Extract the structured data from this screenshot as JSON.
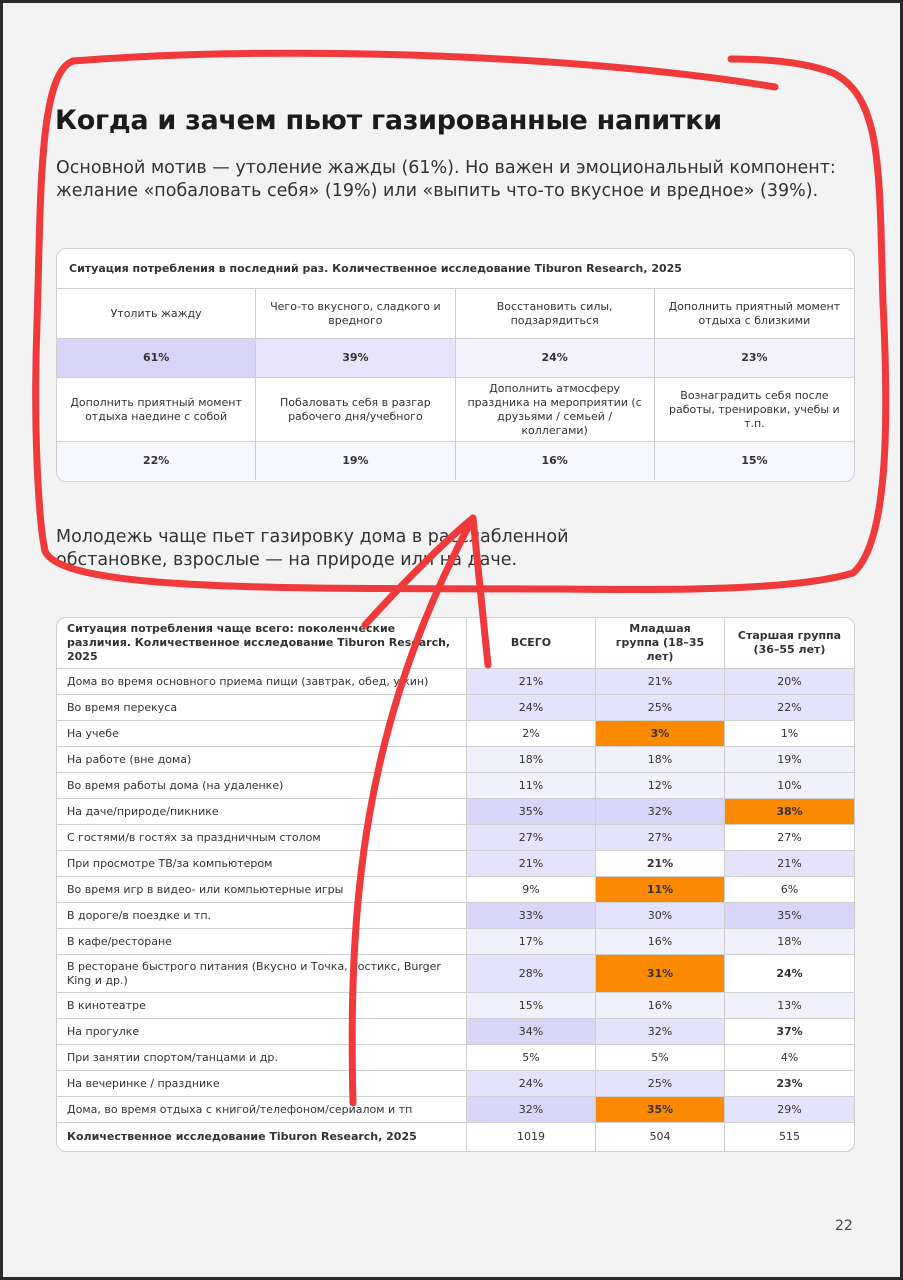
{
  "title": "Когда и зачем пьют газированные напитки",
  "intro": "Основной мотив — утоление жажды (61%). Но важен и эмоциональный компонент: желание «побаловать себя» (19%) или «выпить что-то вкусное и вредное» (39%).",
  "table1": {
    "caption": "Ситуация потребления в последний раз. Количественное исследование Tiburon Research, 2025",
    "rows": [
      [
        "Утолить жажду",
        "Чего-то вкусного, сладкого и вредного",
        "Восстановить силы, подзарядиться",
        "Дополнить приятный момент отдыха с близкими"
      ],
      [
        "61%",
        "39%",
        "24%",
        "23%"
      ],
      [
        "Дополнить приятный момент отдыха наедине с собой",
        "Побаловать себя в разгар рабочего дня/учебного",
        "Дополнить атмосферу праздника на мероприятии (с друзьями / семьей / коллегами)",
        "Вознаградить себя после работы, тренировки, учебы и т.п."
      ],
      [
        "22%",
        "19%",
        "16%",
        "15%"
      ]
    ]
  },
  "subtitle": "Молодежь чаще пьет газировку дома в расслабленной обстановке, взрослые — на природе или на даче.",
  "table2": {
    "header": [
      "Ситуация потребления чаще всего: поколенческие различия. Количественное исследование Tiburon Research, 2025",
      "ВСЕГО",
      "Младшая группа (18–35 лет)",
      "Старшая группа (36–55 лет)"
    ],
    "rows": [
      [
        "Дома во время основного приема пищи (завтрак, обед, ужин)",
        "21%",
        "21%",
        "20%"
      ],
      [
        "Во время перекуса",
        "24%",
        "25%",
        "22%"
      ],
      [
        "На учебе",
        "2%",
        "3%",
        "1%"
      ],
      [
        "На работе (вне дома)",
        "18%",
        "18%",
        "19%"
      ],
      [
        "Во время работы дома (на удаленке)",
        "11%",
        "12%",
        "10%"
      ],
      [
        "На даче/природе/пикнике",
        "35%",
        "32%",
        "38%"
      ],
      [
        "С гостями/в гостях за праздничным столом",
        "27%",
        "27%",
        "27%"
      ],
      [
        "При просмотре ТВ/за компьютером",
        "21%",
        "21%",
        "21%"
      ],
      [
        "Во время игр в видео- или компьютерные игры",
        "9%",
        "11%",
        "6%"
      ],
      [
        "В дороге/в поездке и тп.",
        "33%",
        "30%",
        "35%"
      ],
      [
        "В кафе/ресторане",
        "17%",
        "16%",
        "18%"
      ],
      [
        "В ресторане быстрого питания (Вкусно и Точка, Ростикс, Burger King и др.)",
        "28%",
        "31%",
        "24%"
      ],
      [
        "В кинотеатре",
        "15%",
        "16%",
        "13%"
      ],
      [
        "На прогулке",
        "34%",
        "32%",
        "37%"
      ],
      [
        "При занятии спортом/танцами и др.",
        "5%",
        "5%",
        "4%"
      ],
      [
        "На вечеринке / празднике",
        "24%",
        "25%",
        "23%"
      ],
      [
        "Дома, во время отдыха с книгой/телефоном/сериалом и тп",
        "32%",
        "35%",
        "29%"
      ]
    ],
    "footer": [
      "Количественное исследование Tiburon Research, 2025",
      "1019",
      "504",
      "515"
    ]
  },
  "page_number": "22"
}
